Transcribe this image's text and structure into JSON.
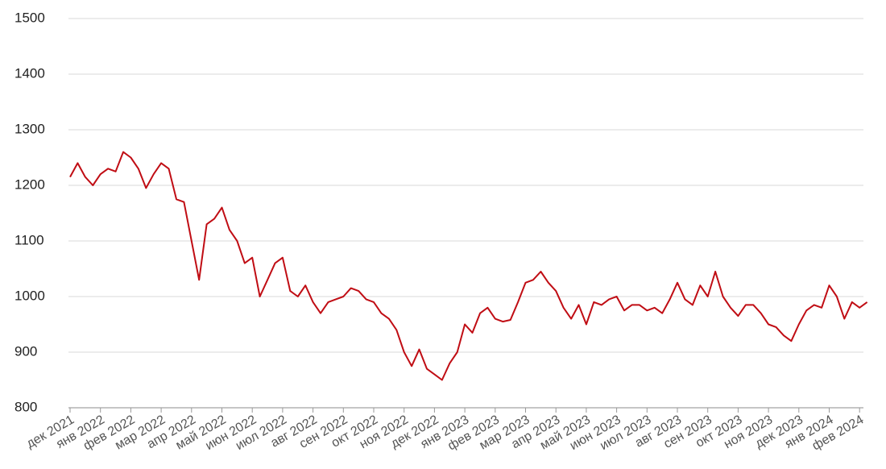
{
  "chart_data": {
    "type": "line",
    "categories": [
      "дек 2021",
      null,
      null,
      null,
      "янв 2022",
      null,
      null,
      null,
      "фев 2022",
      null,
      null,
      null,
      "мар 2022",
      null,
      null,
      null,
      "апр 2022",
      null,
      null,
      null,
      "май 2022",
      null,
      null,
      null,
      "июн 2022",
      null,
      null,
      null,
      "июл 2022",
      null,
      null,
      null,
      "авг 2022",
      null,
      null,
      null,
      "сен 2022",
      null,
      null,
      null,
      "окт 2022",
      null,
      null,
      null,
      "ноя 2022",
      null,
      null,
      null,
      "дек 2022",
      null,
      null,
      null,
      "янв 2023",
      null,
      null,
      null,
      "фев 2023",
      null,
      null,
      null,
      "мар 2023",
      null,
      null,
      null,
      "апр 2023",
      null,
      null,
      null,
      "май 2023",
      null,
      null,
      null,
      "июн 2023",
      null,
      null,
      null,
      "июл 2023",
      null,
      null,
      null,
      "авг 2023",
      null,
      null,
      null,
      "сен 2023",
      null,
      null,
      null,
      "окт 2023",
      null,
      null,
      null,
      "ноя 2023",
      null,
      null,
      null,
      "дек 2023",
      null,
      null,
      null,
      "янв 2024",
      null,
      null,
      null,
      "фев 2024",
      null
    ],
    "values": [
      1215,
      1240,
      1215,
      1200,
      1220,
      1230,
      1225,
      1260,
      1250,
      1230,
      1195,
      1220,
      1240,
      1230,
      1175,
      1170,
      1100,
      1030,
      1130,
      1140,
      1160,
      1120,
      1100,
      1060,
      1070,
      1000,
      1030,
      1060,
      1070,
      1010,
      1000,
      1020,
      990,
      970,
      990,
      995,
      1000,
      1015,
      1010,
      995,
      990,
      970,
      960,
      940,
      900,
      875,
      905,
      870,
      860,
      850,
      880,
      900,
      950,
      935,
      970,
      980,
      960,
      955,
      958,
      990,
      1025,
      1030,
      1045,
      1025,
      1010,
      980,
      960,
      985,
      950,
      990,
      985,
      995,
      1000,
      975,
      985,
      985,
      975,
      980,
      970,
      995,
      1025,
      995,
      985,
      1020,
      1000,
      1045,
      1000,
      980,
      965,
      985,
      985,
      970,
      950,
      945,
      930,
      920,
      950,
      975,
      985,
      980,
      1020,
      1000,
      960,
      990,
      980,
      990
    ],
    "color": "#c00d14",
    "ylim": [
      800,
      1500
    ],
    "yticks": [
      800,
      900,
      1000,
      1100,
      1200,
      1300,
      1400,
      1500
    ],
    "grid": true
  }
}
